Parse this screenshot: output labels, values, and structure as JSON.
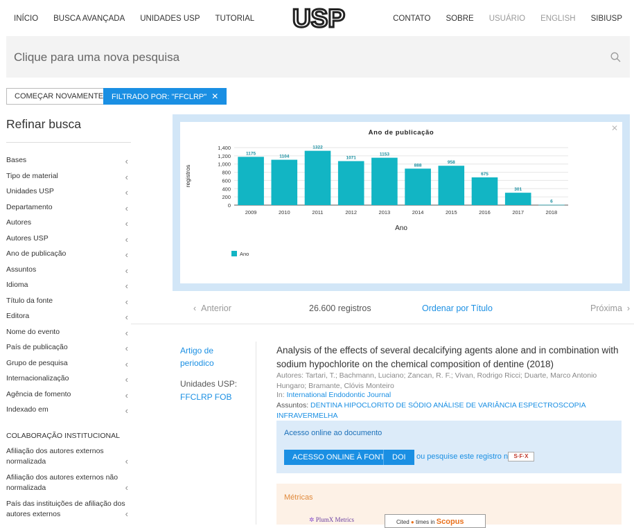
{
  "nav": {
    "left": [
      "INÍCIO",
      "BUSCA AVANÇADA",
      "UNIDADES USP",
      "TUTORIAL"
    ],
    "right": [
      "CONTATO",
      "SOBRE",
      "USUÁRIO",
      "ENGLISH",
      "SIBIUSP"
    ],
    "logo": "USP"
  },
  "search": {
    "placeholder": "Clique para uma nova pesquisa"
  },
  "chips": {
    "restart": "COMEÇAR NOVAMENTE",
    "filter": "FILTRADO POR: \"FFCLRP\"",
    "filter_close": "✕"
  },
  "sidebar": {
    "title": "Refinar busca",
    "facets": [
      "Bases",
      "Tipo de material",
      "Unidades USP",
      "Departamento",
      "Autores",
      "Autores USP",
      "Ano de publicação",
      "Assuntos",
      "Idioma",
      "Título da fonte",
      "Editora",
      "Nome do evento",
      "País de publicação",
      "Grupo de pesquisa",
      "Internacionalização",
      "Agência de fomento",
      "Indexado em"
    ],
    "section": "COLABORAÇÃO INSTITUCIONAL",
    "collab_facets": [
      "Afiliação dos autores externos normalizada",
      "Afiliação dos autores externos não normalizada",
      "País das instituições de afiliação dos autores externos"
    ]
  },
  "chart_data": {
    "type": "bar",
    "title": "Ano de publicação",
    "xlabel": "Ano",
    "ylabel": "registros",
    "categories": [
      "2009",
      "2010",
      "2011",
      "2012",
      "2013",
      "2014",
      "2015",
      "2016",
      "2017",
      "2018"
    ],
    "values": [
      1175,
      1104,
      1322,
      1071,
      1153,
      888,
      958,
      675,
      301,
      6
    ],
    "ylim": [
      0,
      1400
    ],
    "yticks": [
      "0",
      "200",
      "400",
      "600",
      "800",
      "1,000",
      "1,200",
      "1,400"
    ],
    "legend": "Ano",
    "legend_position": "bottom-left",
    "grid": true,
    "bar_color": "#12b5c4"
  },
  "pager": {
    "prev": "Anterior",
    "count": "26.600 registros",
    "order": "Ordenar por Título",
    "next": "Próxima"
  },
  "record": {
    "type": "Artigo de periodico",
    "units_label": "Unidades USP:",
    "units": "FFCLRP FOB",
    "title": "Analysis of the effects of several decalcifying agents alone and in combination with sodium hypochlorite on the chemical composition of dentine (2018)",
    "authors_label": "Autores:",
    "authors": "Tartari, T.; Bachmann, Luciano; Zancan, R. F.; Vivan, Rodrigo Ricci; Duarte, Marco Antonio Hungaro; Bramante, Clóvis Monteiro",
    "in_label": "In:",
    "journal": "International Endodontic Journal",
    "subjects_label": "Assuntos:",
    "subjects": "DENTINA HIPOCLORITO DE SÓDIO ANÁLISE DE VARIÂNCIA ESPECTROSCOPIA INFRAVERMELHA"
  },
  "access": {
    "title": "Acesso online ao documento",
    "btn_online": "ACESSO ONLINE À FONTE",
    "btn_doi": "DOI",
    "or_text": "ou pesquise este registro no",
    "sfx": "S·F·X"
  },
  "metrics": {
    "title": "Métricas",
    "plumx": "PlumX Metrics",
    "scopus_prefix": "Cited",
    "scopus_mid": "times in",
    "scopus_brand": "Scopus"
  }
}
